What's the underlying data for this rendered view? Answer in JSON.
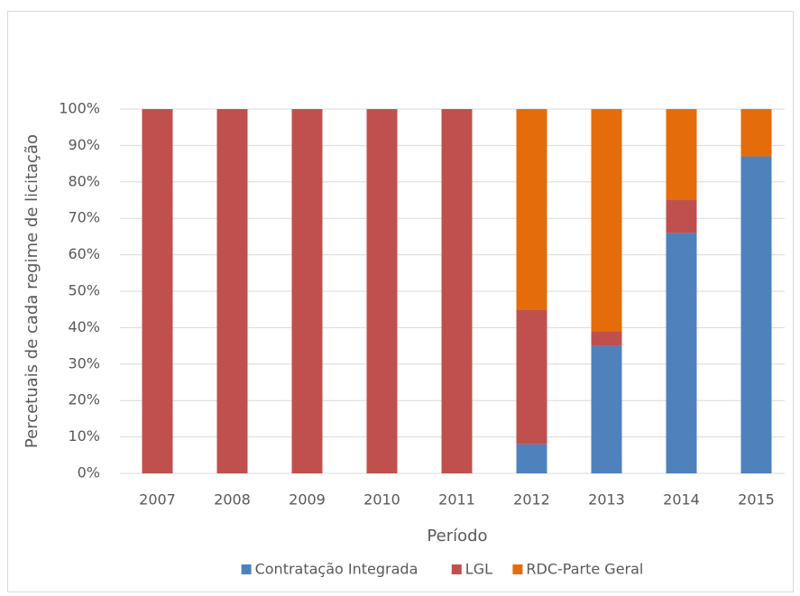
{
  "chart_data": {
    "type": "stacked_bar",
    "categories": [
      "2007",
      "2008",
      "2009",
      "2010",
      "2011",
      "2012",
      "2013",
      "2014",
      "2015"
    ],
    "series": [
      {
        "name": "Contratação Integrada",
        "color": "#4f81bd",
        "values": [
          0,
          0,
          0,
          0,
          0,
          8,
          35,
          66,
          87
        ]
      },
      {
        "name": "LGL",
        "color": "#c0504d",
        "values": [
          100,
          100,
          100,
          100,
          100,
          37,
          4,
          9,
          0
        ]
      },
      {
        "name": "RDC-Parte Geral",
        "color": "#e46c0a",
        "values": [
          0,
          0,
          0,
          0,
          0,
          55,
          61,
          25,
          13
        ]
      }
    ],
    "x_label": "Período",
    "y_label": "Percetuais de cada regime de licitação",
    "ylim": [
      0,
      100
    ],
    "yticks": [
      {
        "value": 0,
        "label": "0%"
      },
      {
        "value": 10,
        "label": "10%"
      },
      {
        "value": 20,
        "label": "20%"
      },
      {
        "value": 30,
        "label": "30%"
      },
      {
        "value": 40,
        "label": "40%"
      },
      {
        "value": 50,
        "label": "50%"
      },
      {
        "value": 60,
        "label": "60%"
      },
      {
        "value": 70,
        "label": "70%"
      },
      {
        "value": 80,
        "label": "80%"
      },
      {
        "value": 90,
        "label": "90%"
      },
      {
        "value": 100,
        "label": "100%"
      }
    ],
    "grid": true,
    "legend": "bottom"
  }
}
